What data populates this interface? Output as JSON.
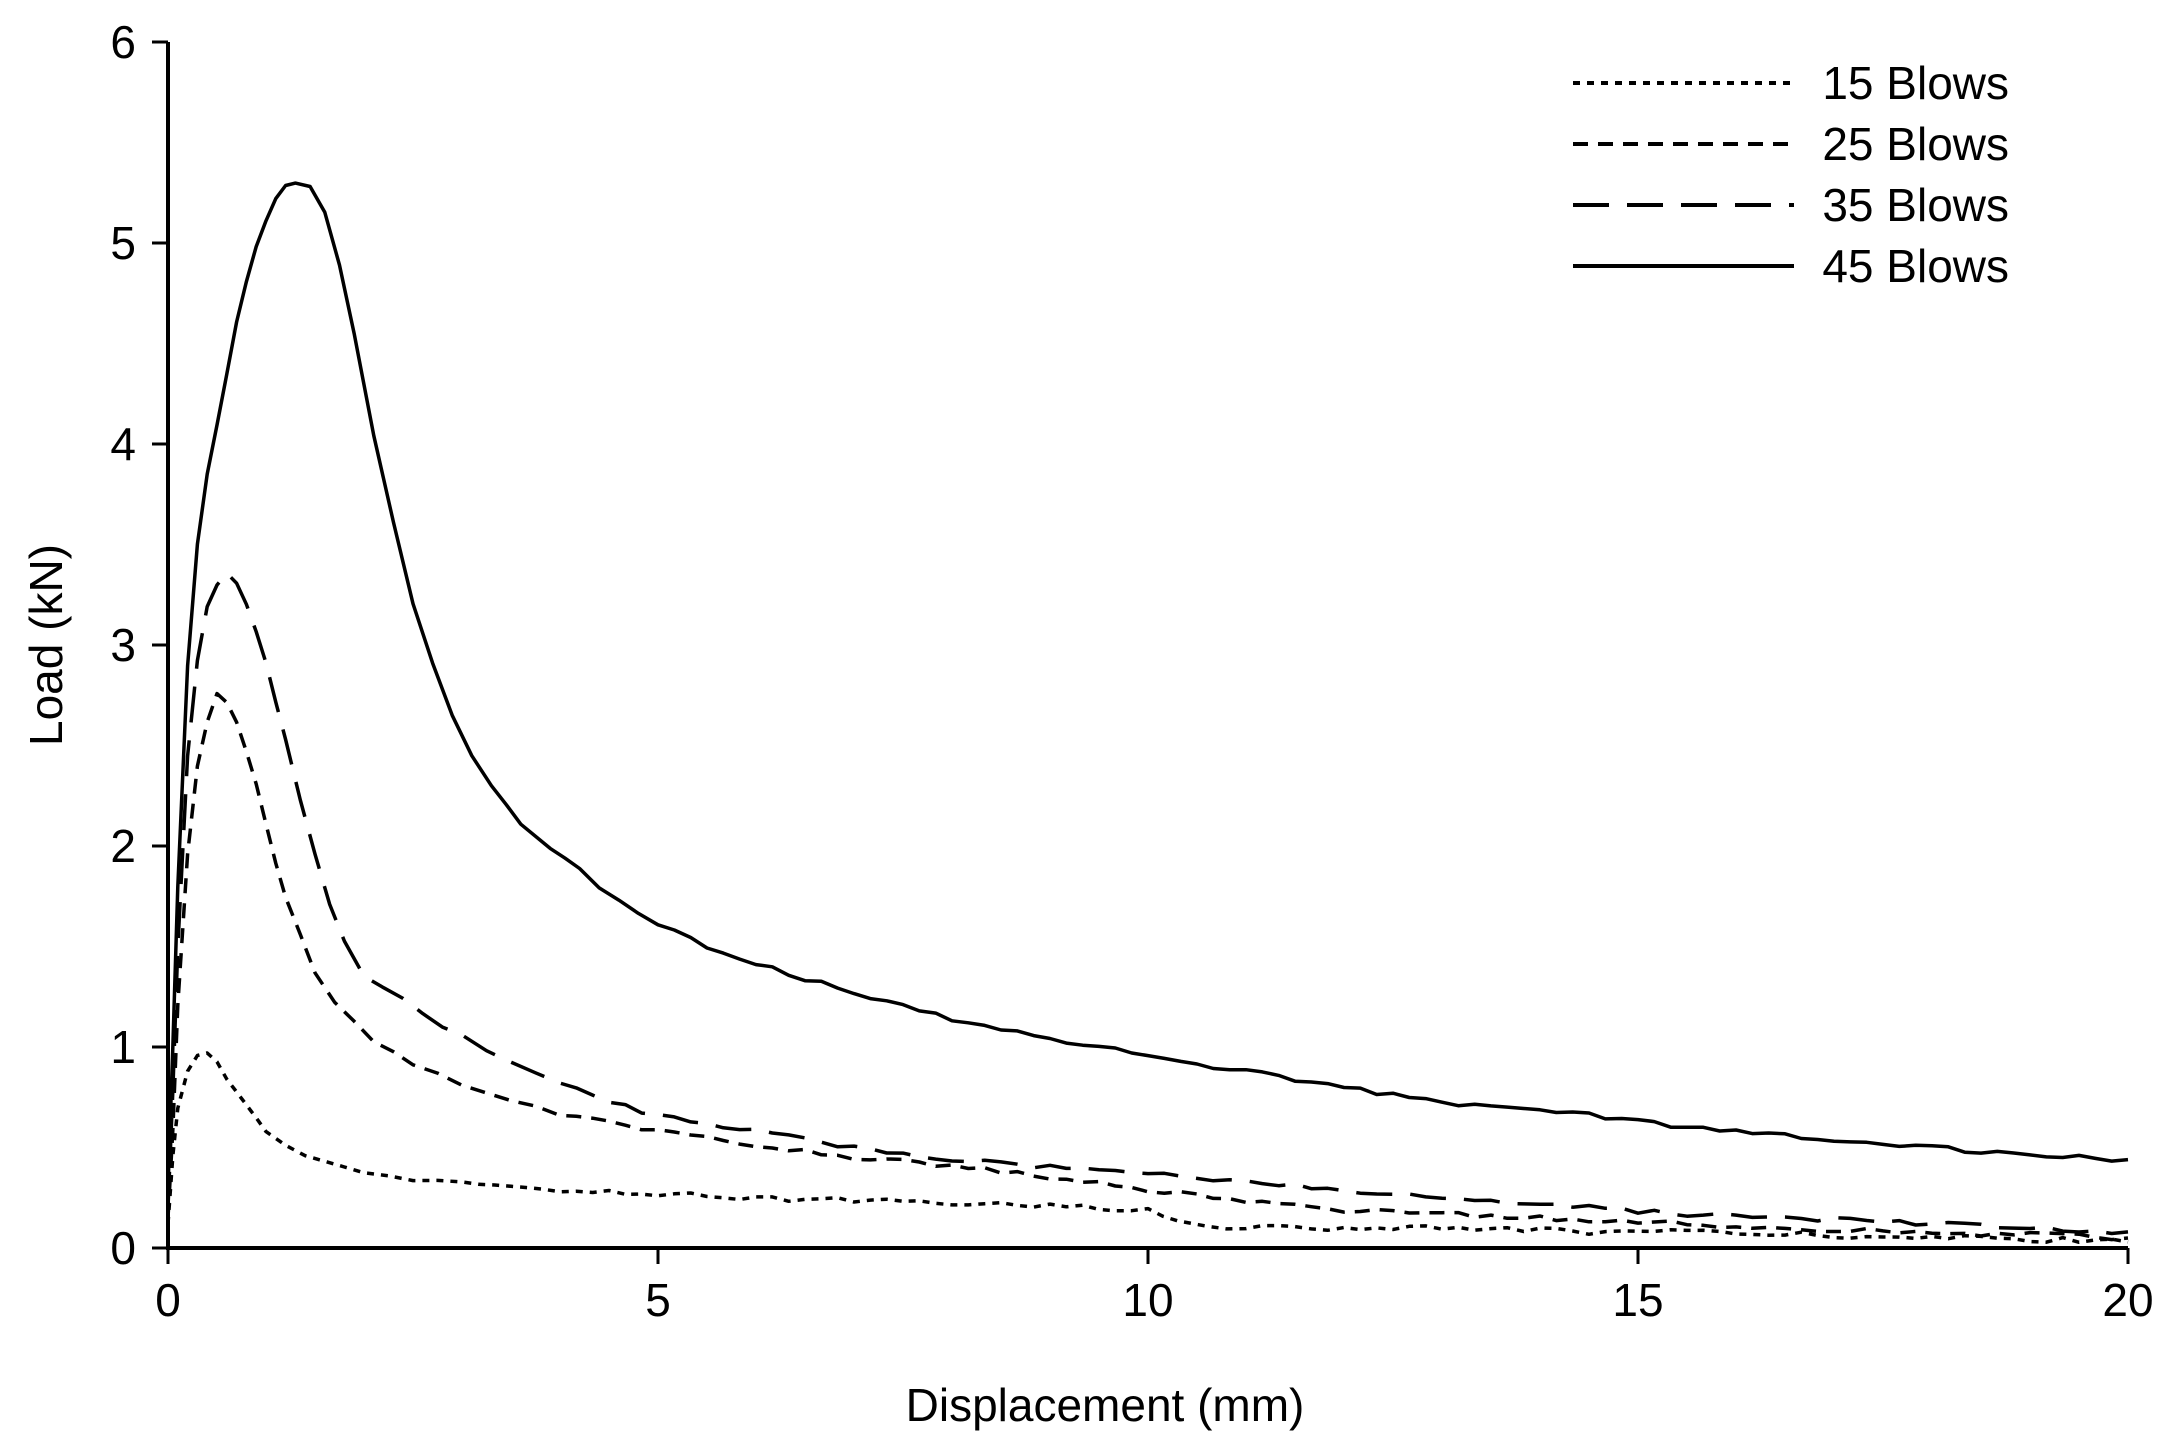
{
  "chart_data": {
    "type": "line",
    "title": "",
    "xlabel": "Displacement (mm)",
    "ylabel": "Load (kN)",
    "xlim": [
      0,
      20
    ],
    "ylim": [
      0,
      6
    ],
    "xticks": [
      0,
      5,
      10,
      15,
      20
    ],
    "yticks": [
      0,
      1,
      2,
      3,
      4,
      5,
      6
    ],
    "grid": false,
    "legend_position": "top-right",
    "background_color": "#ffffff",
    "line_color": "#000000",
    "noise_amplitude": 0.012,
    "series": [
      {
        "name": "15 Blows",
        "dash": "7 7",
        "x": [
          0,
          0.05,
          0.1,
          0.2,
          0.3,
          0.4,
          0.5,
          0.6,
          0.7,
          0.8,
          0.9,
          1.0,
          1.2,
          1.4,
          1.6,
          1.8,
          2.0,
          2.25,
          2.5,
          2.75,
          3.0,
          3.5,
          4.0,
          4.5,
          5.0,
          5.5,
          6.0,
          6.5,
          7.0,
          7.5,
          8.0,
          8.5,
          9.0,
          9.5,
          10.0,
          10.3,
          10.6,
          11.0,
          11.5,
          12.0,
          12.5,
          13.0,
          13.5,
          14.0,
          14.5,
          15.0,
          15.5,
          16.0,
          16.5,
          17.0,
          17.5,
          18.0,
          18.5,
          19.0,
          19.5,
          20.0
        ],
        "y": [
          0.12,
          0.45,
          0.7,
          0.88,
          0.95,
          0.97,
          0.93,
          0.85,
          0.77,
          0.7,
          0.64,
          0.58,
          0.5,
          0.45,
          0.42,
          0.4,
          0.38,
          0.36,
          0.34,
          0.33,
          0.32,
          0.3,
          0.29,
          0.28,
          0.27,
          0.26,
          0.25,
          0.24,
          0.24,
          0.23,
          0.22,
          0.22,
          0.21,
          0.2,
          0.19,
          0.13,
          0.11,
          0.1,
          0.1,
          0.1,
          0.1,
          0.1,
          0.09,
          0.09,
          0.08,
          0.08,
          0.08,
          0.07,
          0.07,
          0.06,
          0.06,
          0.05,
          0.05,
          0.04,
          0.04,
          0.03
        ]
      },
      {
        "name": "25 Blows",
        "dash": "15 10",
        "x": [
          0,
          0.05,
          0.1,
          0.2,
          0.3,
          0.4,
          0.5,
          0.6,
          0.7,
          0.8,
          0.9,
          1.0,
          1.1,
          1.2,
          1.35,
          1.5,
          1.7,
          1.9,
          2.1,
          2.3,
          2.5,
          2.75,
          3.0,
          3.25,
          3.5,
          3.75,
          4.0,
          4.5,
          5.0,
          5.5,
          6.0,
          6.5,
          7.0,
          7.5,
          8.0,
          8.5,
          9.0,
          9.5,
          10.0,
          10.5,
          11.0,
          11.5,
          12.0,
          12.5,
          13.0,
          13.5,
          14.0,
          14.5,
          15.0,
          15.5,
          16.0,
          16.5,
          17.0,
          17.5,
          18.0,
          18.5,
          19.0,
          19.5,
          20.0
        ],
        "y": [
          0.15,
          0.6,
          1.2,
          1.95,
          2.4,
          2.62,
          2.75,
          2.72,
          2.62,
          2.48,
          2.3,
          2.1,
          1.92,
          1.75,
          1.55,
          1.38,
          1.22,
          1.12,
          1.03,
          0.97,
          0.92,
          0.87,
          0.82,
          0.78,
          0.74,
          0.7,
          0.67,
          0.62,
          0.58,
          0.55,
          0.51,
          0.48,
          0.45,
          0.43,
          0.41,
          0.38,
          0.35,
          0.32,
          0.29,
          0.26,
          0.23,
          0.21,
          0.19,
          0.18,
          0.17,
          0.16,
          0.15,
          0.14,
          0.13,
          0.12,
          0.11,
          0.1,
          0.09,
          0.09,
          0.08,
          0.07,
          0.07,
          0.06,
          0.05
        ]
      },
      {
        "name": "35 Blows",
        "dash": "36 18",
        "x": [
          0,
          0.05,
          0.1,
          0.2,
          0.3,
          0.4,
          0.5,
          0.6,
          0.7,
          0.8,
          0.9,
          1.0,
          1.1,
          1.2,
          1.35,
          1.5,
          1.65,
          1.8,
          2.0,
          2.2,
          2.4,
          2.6,
          2.8,
          3.0,
          3.25,
          3.5,
          3.75,
          4.0,
          4.5,
          5.0,
          5.5,
          6.0,
          6.5,
          7.0,
          7.5,
          8.0,
          8.5,
          9.0,
          9.5,
          10.0,
          10.5,
          11.0,
          11.5,
          12.0,
          12.5,
          13.0,
          13.5,
          14.0,
          14.5,
          15.0,
          15.5,
          16.0,
          16.5,
          17.0,
          17.5,
          18.0,
          18.5,
          19.0,
          19.5,
          20.0
        ],
        "y": [
          0.2,
          0.8,
          1.5,
          2.45,
          2.92,
          3.18,
          3.3,
          3.35,
          3.3,
          3.2,
          3.06,
          2.9,
          2.72,
          2.52,
          2.22,
          1.95,
          1.72,
          1.52,
          1.36,
          1.29,
          1.23,
          1.17,
          1.11,
          1.06,
          0.99,
          0.93,
          0.88,
          0.83,
          0.73,
          0.66,
          0.62,
          0.58,
          0.54,
          0.5,
          0.47,
          0.44,
          0.42,
          0.4,
          0.38,
          0.37,
          0.35,
          0.33,
          0.31,
          0.29,
          0.27,
          0.25,
          0.23,
          0.21,
          0.2,
          0.18,
          0.17,
          0.16,
          0.15,
          0.14,
          0.13,
          0.12,
          0.11,
          0.1,
          0.09,
          0.08
        ]
      },
      {
        "name": "45 Blows",
        "dash": "",
        "x": [
          0,
          0.05,
          0.1,
          0.2,
          0.3,
          0.4,
          0.5,
          0.6,
          0.7,
          0.8,
          0.9,
          1.0,
          1.1,
          1.2,
          1.3,
          1.45,
          1.6,
          1.75,
          1.9,
          2.1,
          2.3,
          2.5,
          2.7,
          2.9,
          3.1,
          3.3,
          3.6,
          3.9,
          4.2,
          4.6,
          5.0,
          5.5,
          6.0,
          6.5,
          7.0,
          7.5,
          8.0,
          8.5,
          9.0,
          9.5,
          10.0,
          10.5,
          11.0,
          11.5,
          12.0,
          12.5,
          13.0,
          13.5,
          14.0,
          14.5,
          15.0,
          15.5,
          16.0,
          16.5,
          17.0,
          17.5,
          18.0,
          18.5,
          19.0,
          19.5,
          20.0
        ],
        "y": [
          0.3,
          1.0,
          1.8,
          2.9,
          3.5,
          3.85,
          4.1,
          4.35,
          4.6,
          4.8,
          4.98,
          5.12,
          5.22,
          5.28,
          5.3,
          5.28,
          5.15,
          4.9,
          4.55,
          4.05,
          3.6,
          3.2,
          2.9,
          2.65,
          2.45,
          2.3,
          2.12,
          2.0,
          1.88,
          1.72,
          1.62,
          1.5,
          1.42,
          1.34,
          1.27,
          1.2,
          1.14,
          1.09,
          1.04,
          1.0,
          0.95,
          0.91,
          0.88,
          0.84,
          0.8,
          0.76,
          0.72,
          0.7,
          0.68,
          0.66,
          0.63,
          0.6,
          0.58,
          0.56,
          0.54,
          0.52,
          0.5,
          0.48,
          0.46,
          0.45,
          0.44
        ]
      }
    ]
  }
}
